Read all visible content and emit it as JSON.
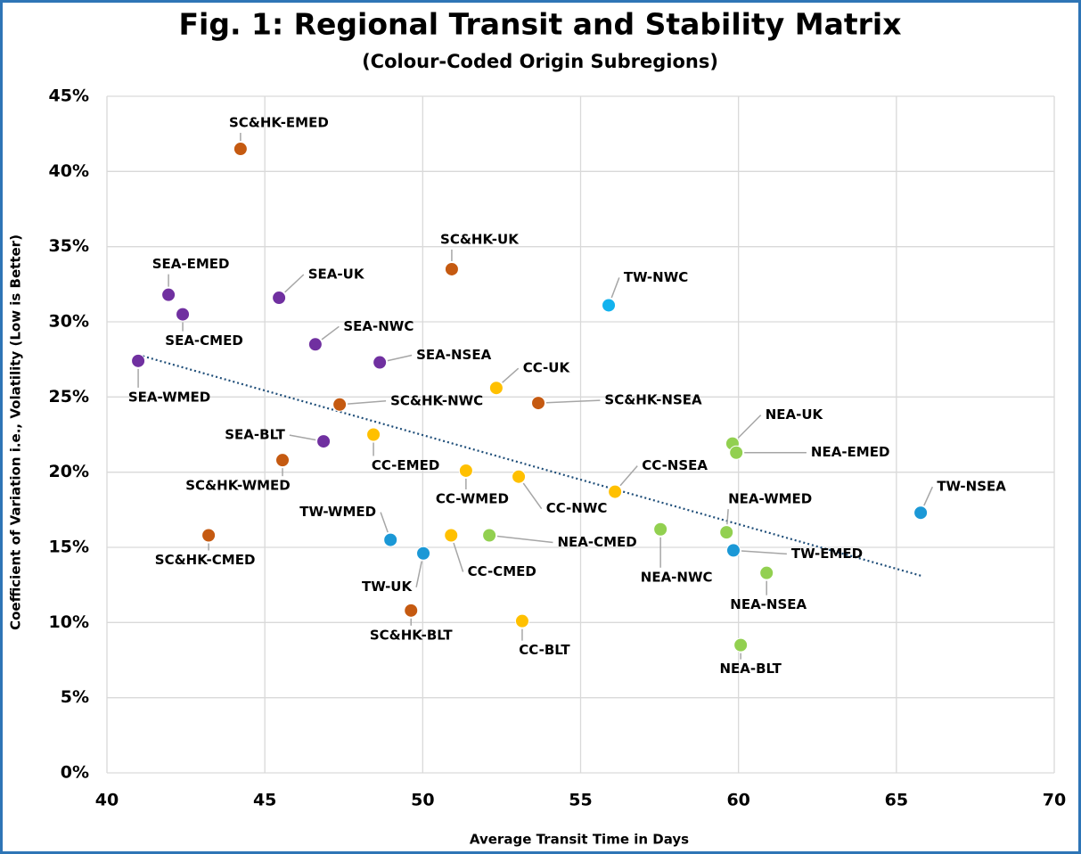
{
  "chart_data": {
    "type": "scatter",
    "title": "Fig. 1: Regional Transit and Stability Matrix",
    "subtitle": "(Colour-Coded Origin Subregions)",
    "x_label": "Average Transit Time in Days",
    "y_label": "Coefficient of Variation i.e., Volatility (Low is Better)",
    "xlim": [
      40,
      70
    ],
    "xticks": [
      40,
      45,
      50,
      55,
      60,
      65,
      70
    ],
    "ylim": [
      0,
      45
    ],
    "yticks": [
      {
        "value": 0,
        "label": "0%"
      },
      {
        "value": 5,
        "label": "5%"
      },
      {
        "value": 10,
        "label": "10%"
      },
      {
        "value": 15,
        "label": "15%"
      },
      {
        "value": 20,
        "label": "20%"
      },
      {
        "value": 25,
        "label": "25%"
      },
      {
        "value": 30,
        "label": "30%"
      },
      {
        "value": 35,
        "label": "35%"
      },
      {
        "value": 40,
        "label": "40%"
      },
      {
        "value": 45,
        "label": "45%"
      }
    ],
    "grid": true,
    "points": [
      {
        "label": "SC&HK-EMED",
        "x": 44.23,
        "y": 41.5,
        "color": "#c55a11"
      },
      {
        "label": "SEA-EMED",
        "x": 41.95,
        "y": 31.8,
        "color": "#7030a0"
      },
      {
        "label": "SEA-UK",
        "x": 45.45,
        "y": 31.6,
        "color": "#7030a0"
      },
      {
        "label": "SEA-CMED",
        "x": 42.4,
        "y": 30.5,
        "color": "#7030a0"
      },
      {
        "label": "SEA-NWC",
        "x": 46.6,
        "y": 28.5,
        "color": "#7030a0"
      },
      {
        "label": "SEA-WMED",
        "x": 40.99,
        "y": 27.4,
        "color": "#7030a0"
      },
      {
        "label": "SEA-NSEA",
        "x": 48.64,
        "y": 27.3,
        "color": "#7030a0"
      },
      {
        "label": "SC&HK-UK",
        "x": 50.92,
        "y": 33.5,
        "color": "#c55a11"
      },
      {
        "label": "TW-NWC",
        "x": 55.89,
        "y": 31.1,
        "color": "#12b2ee"
      },
      {
        "label": "CC-UK",
        "x": 52.33,
        "y": 25.6,
        "color": "#ffc000"
      },
      {
        "label": "SC&HK-NWC",
        "x": 47.37,
        "y": 24.5,
        "color": "#c55a11"
      },
      {
        "label": "SC&HK-NSEA",
        "x": 53.66,
        "y": 24.6,
        "color": "#c55a11"
      },
      {
        "label": "SEA-BLT",
        "x": 46.86,
        "y": 22.05,
        "color": "#7030a0"
      },
      {
        "label": "CC-EMED",
        "x": 48.44,
        "y": 22.5,
        "color": "#ffc000"
      },
      {
        "label": "SC&HK-WMED",
        "x": 45.56,
        "y": 20.8,
        "color": "#c55a11"
      },
      {
        "label": "CC-WMED",
        "x": 51.37,
        "y": 20.1,
        "color": "#ffc000"
      },
      {
        "label": "CC-NWC",
        "x": 53.04,
        "y": 19.7,
        "color": "#ffc000"
      },
      {
        "label": "CC-NSEA",
        "x": 56.09,
        "y": 18.7,
        "color": "#ffc000"
      },
      {
        "label": "NEA-UK",
        "x": 59.81,
        "y": 21.9,
        "color": "#92d050"
      },
      {
        "label": "NEA-EMED",
        "x": 59.93,
        "y": 21.3,
        "color": "#92d050"
      },
      {
        "label": "TW-NSEA",
        "x": 65.77,
        "y": 17.3,
        "color": "#1b98d6"
      },
      {
        "label": "NEA-WMED",
        "x": 59.62,
        "y": 16.0,
        "color": "#92d050"
      },
      {
        "label": "TW-EMED",
        "x": 59.84,
        "y": 14.8,
        "color": "#1b98d6"
      },
      {
        "label": "NEA-NSEA",
        "x": 60.89,
        "y": 13.3,
        "color": "#92d050"
      },
      {
        "label": "NEA-NWC",
        "x": 57.53,
        "y": 16.2,
        "color": "#92d050"
      },
      {
        "label": "NEA-CMED",
        "x": 52.11,
        "y": 15.8,
        "color": "#92d050"
      },
      {
        "label": "CC-CMED",
        "x": 50.9,
        "y": 15.8,
        "color": "#ffc000"
      },
      {
        "label": "TW-WMED",
        "x": 48.98,
        "y": 15.5,
        "color": "#1b98d6"
      },
      {
        "label": "TW-UK",
        "x": 50.02,
        "y": 14.6,
        "color": "#1b98d6"
      },
      {
        "label": "SC&HK-CMED",
        "x": 43.22,
        "y": 15.8,
        "color": "#c55a11"
      },
      {
        "label": "SC&HK-BLT",
        "x": 49.63,
        "y": 10.8,
        "color": "#c55a11"
      },
      {
        "label": "CC-BLT",
        "x": 53.15,
        "y": 10.1,
        "color": "#ffc000"
      },
      {
        "label": "NEA-BLT",
        "x": 60.07,
        "y": 8.5,
        "color": "#92d050"
      }
    ],
    "trendline": {
      "x": [
        41,
        65.8
      ],
      "y": [
        27.8,
        13.1
      ],
      "color": "#1f4e79"
    }
  }
}
